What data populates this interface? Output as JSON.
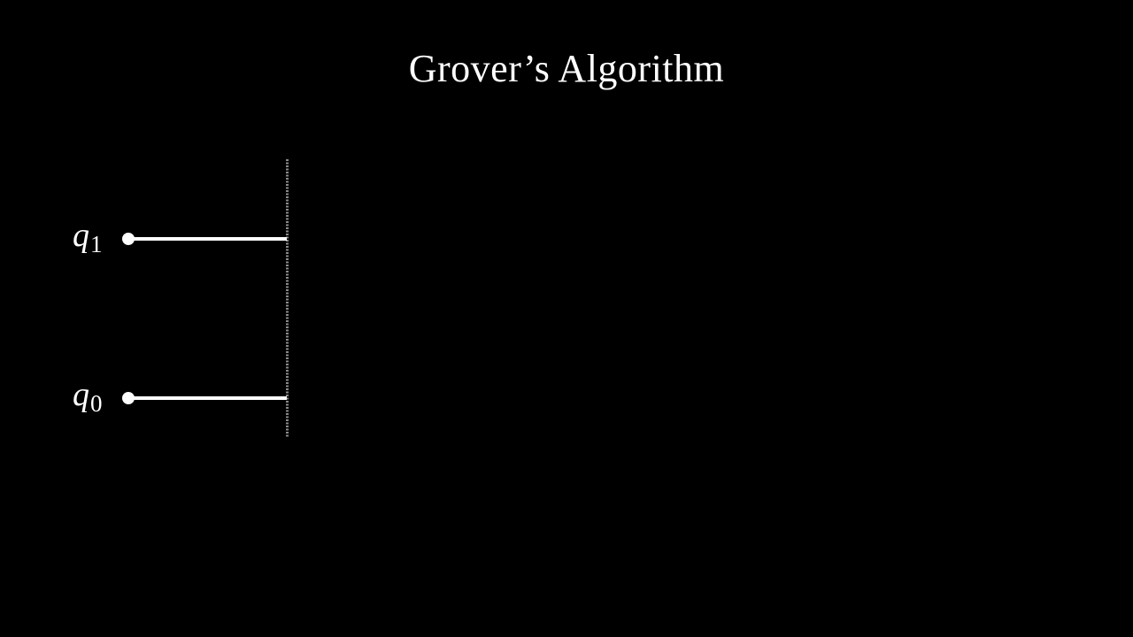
{
  "title": "Grover’s Algorithm",
  "colors": {
    "background": "#000000",
    "foreground": "#ffffff",
    "barrier": "#8a8a8a"
  },
  "qubits": [
    {
      "symbol": "q",
      "index": "1"
    },
    {
      "symbol": "q",
      "index": "0"
    }
  ]
}
